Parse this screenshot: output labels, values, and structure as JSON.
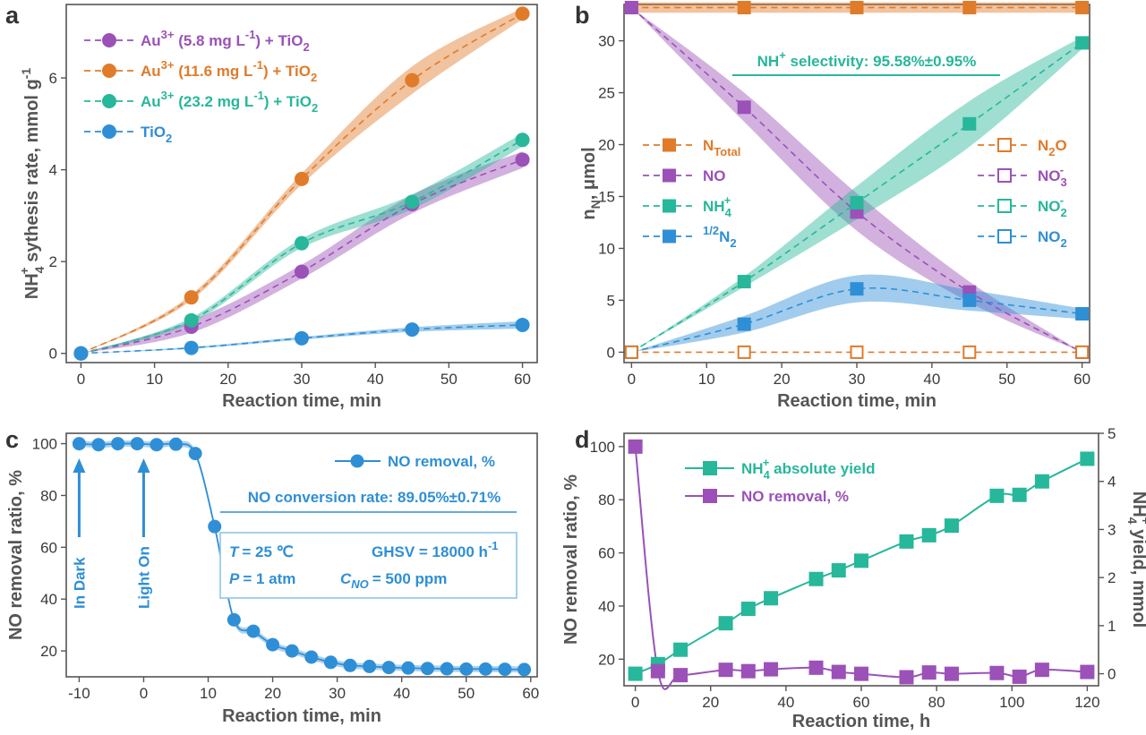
{
  "colors": {
    "purple": "#9b51b8",
    "orange": "#e07b2a",
    "teal": "#27b79a",
    "blue": "#2f8fd6",
    "axis": "#555555",
    "text": "#3a3a3a"
  },
  "chart_data": [
    {
      "panel": "a",
      "type": "line",
      "xlabel": "Reaction time, min",
      "ylabel_main": "NH",
      "ylabel_sub": "4",
      "ylabel_sup": "+",
      "ylabel_rest": " sythesis rate, mmol g",
      "ylabel_unit_sup": "-1",
      "xlim": [
        -2,
        62
      ],
      "ylim": [
        -0.2,
        7.6
      ],
      "xticks": [
        0,
        10,
        20,
        30,
        40,
        50,
        60
      ],
      "yticks": [
        0,
        2,
        4,
        6
      ],
      "legend_position": "top-left",
      "series": [
        {
          "name": "Au3+ (5.8 mg L-1) + TiO2",
          "legend_parts": [
            "Au",
            "3+",
            " (5.8 mg L",
            "-1",
            ") + TiO",
            "2"
          ],
          "color": "purple",
          "marker": "circle",
          "x": [
            0,
            15,
            30,
            45,
            60
          ],
          "y": [
            0.0,
            0.58,
            1.78,
            3.25,
            4.22
          ],
          "band": [
            0.0,
            0.13,
            0.15,
            0.2,
            0.18
          ]
        },
        {
          "name": "Au3+ (11.6 mg L-1) + TiO2",
          "legend_parts": [
            "Au",
            "3+",
            " (11.6 mg L",
            "-1",
            ") + TiO",
            "2"
          ],
          "color": "orange",
          "marker": "circle",
          "x": [
            0,
            15,
            30,
            45,
            60
          ],
          "y": [
            0.0,
            1.22,
            3.8,
            5.95,
            7.4
          ],
          "band": [
            0.0,
            0.06,
            0.12,
            0.3,
            0.12
          ]
        },
        {
          "name": "Au3+ (23.2 mg L-1) + TiO2",
          "legend_parts": [
            "Au",
            "3+",
            " (23.2 mg L",
            "-1",
            ") + TiO",
            "2"
          ],
          "color": "teal",
          "marker": "circle",
          "x": [
            0,
            15,
            30,
            45,
            60
          ],
          "y": [
            0.0,
            0.72,
            2.4,
            3.3,
            4.65
          ],
          "band": [
            0.0,
            0.06,
            0.1,
            0.16,
            0.14
          ]
        },
        {
          "name": "TiO2",
          "legend_parts": [
            "TiO",
            "2",
            "",
            "",
            "",
            ""
          ],
          "color": "blue",
          "marker": "circle",
          "x": [
            0,
            15,
            30,
            45,
            60
          ],
          "y": [
            0.0,
            0.12,
            0.33,
            0.52,
            0.62
          ],
          "band": [
            0.0,
            0.02,
            0.03,
            0.05,
            0.08
          ]
        }
      ]
    },
    {
      "panel": "b",
      "type": "line",
      "xlabel": "Reaction time, min",
      "ylabel_main": "n",
      "ylabel_sub": "N",
      "ylabel_rest": ", μmol",
      "xlim": [
        -1,
        61
      ],
      "ylim": [
        -1,
        33.5
      ],
      "xticks": [
        0,
        10,
        20,
        30,
        40,
        50,
        60
      ],
      "yticks": [
        0,
        5,
        10,
        15,
        20,
        25,
        30
      ],
      "annotation": "NH4+ selectivity: 95.58%±0.95%",
      "annotation_parts": [
        "NH",
        "4",
        "+",
        " selectivity: 95.58%±0.95%"
      ],
      "legend_left": [
        {
          "label_parts": [
            "N",
            "Total",
            ""
          ],
          "color": "orange"
        },
        {
          "label_parts": [
            "NO",
            "",
            ""
          ],
          "color": "purple"
        },
        {
          "label_parts": [
            "NH",
            "4",
            "+"
          ],
          "color": "teal"
        },
        {
          "label_parts": [
            "N",
            "2",
            "1/2"
          ],
          "color": "blue"
        }
      ],
      "legend_right": [
        {
          "label_parts": [
            "N",
            "2",
            "O"
          ],
          "color": "orange"
        },
        {
          "label_parts": [
            "NO",
            "3",
            "-"
          ],
          "color": "purple"
        },
        {
          "label_parts": [
            "NO",
            "2",
            "-"
          ],
          "color": "teal"
        },
        {
          "label_parts": [
            "NO",
            "2",
            ""
          ],
          "color": "blue"
        }
      ],
      "series": [
        {
          "name": "N Total",
          "color": "orange",
          "marker": "square",
          "x": [
            0,
            15,
            30,
            45,
            60
          ],
          "y": [
            33.2,
            33.2,
            33.2,
            33.2,
            33.2
          ],
          "band": [
            0.5,
            0.5,
            0.5,
            0.5,
            0.5
          ]
        },
        {
          "name": "NO",
          "color": "purple",
          "marker": "square",
          "x": [
            0,
            15,
            30,
            45,
            60
          ],
          "y": [
            33.2,
            23.6,
            13.5,
            5.8,
            0.0
          ],
          "band": [
            0.0,
            1.4,
            1.8,
            1.0,
            0.0
          ]
        },
        {
          "name": "NH4+",
          "color": "teal",
          "marker": "square",
          "x": [
            0,
            15,
            30,
            45,
            60
          ],
          "y": [
            0.0,
            6.8,
            14.4,
            22.0,
            29.8
          ],
          "band": [
            0.0,
            0.5,
            1.6,
            2.2,
            0.6
          ]
        },
        {
          "name": "1/2 N2",
          "color": "blue",
          "marker": "square",
          "x": [
            0,
            15,
            30,
            45,
            60
          ],
          "y": [
            0.0,
            2.7,
            6.1,
            5.0,
            3.7
          ],
          "band": [
            0.0,
            0.8,
            1.3,
            1.0,
            0.5
          ]
        },
        {
          "name": "N2O / NO3- / NO2- / NO2",
          "color": "orange",
          "marker": "open-square",
          "x": [
            0,
            15,
            30,
            45,
            60
          ],
          "y": [
            0,
            0,
            0,
            0,
            0
          ],
          "band": [
            0,
            0,
            0,
            0,
            0
          ]
        }
      ]
    },
    {
      "panel": "c",
      "type": "line",
      "xlabel": "Reaction time, min",
      "ylabel": "NO removal ratio, %",
      "xlim": [
        -12,
        61
      ],
      "ylim": [
        10,
        104
      ],
      "xticks": [
        -10,
        0,
        10,
        20,
        30,
        40,
        50,
        60
      ],
      "yticks": [
        20,
        40,
        60,
        80,
        100
      ],
      "legend_position": "top-right",
      "legend": "NO removal, %",
      "annotation": "NO conversion rate: 89.05%±0.71%",
      "condition_T": "= 25 ℃",
      "condition_GHSV": "GHSV = 18000 h",
      "condition_GHSV_sup": "-1",
      "condition_P": "= 1 atm",
      "condition_C_sub": "NO",
      "condition_C": "= 500 ppm",
      "var_T": "T",
      "var_P": "P",
      "var_C": "C",
      "arrow_labels": [
        "In Dark",
        "Light On"
      ],
      "arrow_x": [
        -10,
        0
      ],
      "series": [
        {
          "name": "NO removal, %",
          "color": "blue",
          "marker": "circle",
          "x": [
            -10,
            -7,
            -4,
            -1,
            2,
            5,
            8,
            11,
            14,
            17,
            20,
            23,
            26,
            29,
            32,
            35,
            38,
            41,
            44,
            47,
            50,
            53,
            56,
            59
          ],
          "y": [
            100,
            99.6,
            100,
            100,
            99.6,
            99.8,
            96.2,
            68,
            32,
            27.6,
            22.4,
            20,
            17.6,
            15.6,
            14.4,
            14,
            13.6,
            13.4,
            13.2,
            13.1,
            13.0,
            13.0,
            12.9,
            12.8
          ]
        }
      ]
    },
    {
      "panel": "d",
      "type": "line",
      "xlabel": "Reaction time, h",
      "ylabel": "NO removal ratio, %",
      "ylabel_right_main": "NH",
      "ylabel_right_sub": "4",
      "ylabel_right_sup": "+",
      "ylabel_right_rest": " yield, mmol",
      "xlim": [
        -3,
        123
      ],
      "ylim": [
        10,
        105
      ],
      "ylim_right": [
        -0.25,
        5
      ],
      "xticks": [
        0,
        20,
        40,
        60,
        80,
        100,
        120
      ],
      "yticks": [
        20,
        40,
        60,
        80,
        100
      ],
      "yticks_right": [
        0,
        1,
        2,
        3,
        4,
        5
      ],
      "legend_position": "top-center",
      "series": [
        {
          "name": "NH4+ absolute yield",
          "legend_parts": [
            "NH",
            "4",
            "+",
            " absolute yield"
          ],
          "axis": "right",
          "color": "teal",
          "marker": "square",
          "x": [
            0,
            6,
            12,
            24,
            30,
            36,
            48,
            54,
            60,
            72,
            78,
            84,
            96,
            102,
            108,
            120
          ],
          "y": [
            0.0,
            0.2,
            0.5,
            1.05,
            1.35,
            1.57,
            1.97,
            2.15,
            2.35,
            2.75,
            2.88,
            3.08,
            3.7,
            3.72,
            4.0,
            4.47
          ]
        },
        {
          "name": "NO removal, %",
          "legend_parts": [
            "NO removal, %",
            "",
            "",
            ""
          ],
          "axis": "left",
          "color": "purple",
          "marker": "square",
          "x": [
            0,
            6,
            12,
            24,
            30,
            36,
            48,
            54,
            60,
            72,
            78,
            84,
            96,
            102,
            108,
            120
          ],
          "y": [
            100,
            15.5,
            14,
            16,
            15.5,
            16.2,
            16.8,
            15.2,
            14.5,
            13.2,
            15,
            14.5,
            14.8,
            13.4,
            16,
            15.2
          ]
        }
      ]
    }
  ],
  "panel_letters": [
    "a",
    "b",
    "c",
    "d"
  ]
}
